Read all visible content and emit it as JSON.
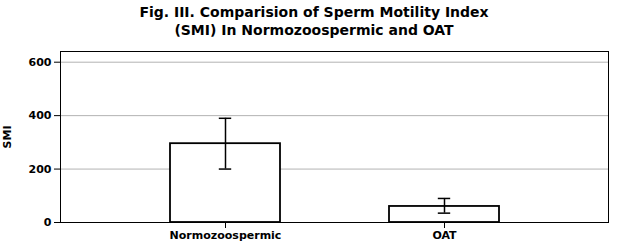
{
  "chart_data": {
    "type": "bar",
    "title": "Fig. III. Comparision of Sperm Motility Index\n(SMI) In Normozoospermic and OAT",
    "categories": [
      "Normozoospermic",
      "OAT"
    ],
    "values": [
      295,
      60
    ],
    "errors_up": [
      95,
      30
    ],
    "errors_down": [
      95,
      25
    ],
    "color": "#ffffff",
    "ylabel": "SMI",
    "ylim": [
      0,
      640
    ],
    "yticks": [
      0,
      200,
      400,
      600
    ],
    "grid": true
  }
}
